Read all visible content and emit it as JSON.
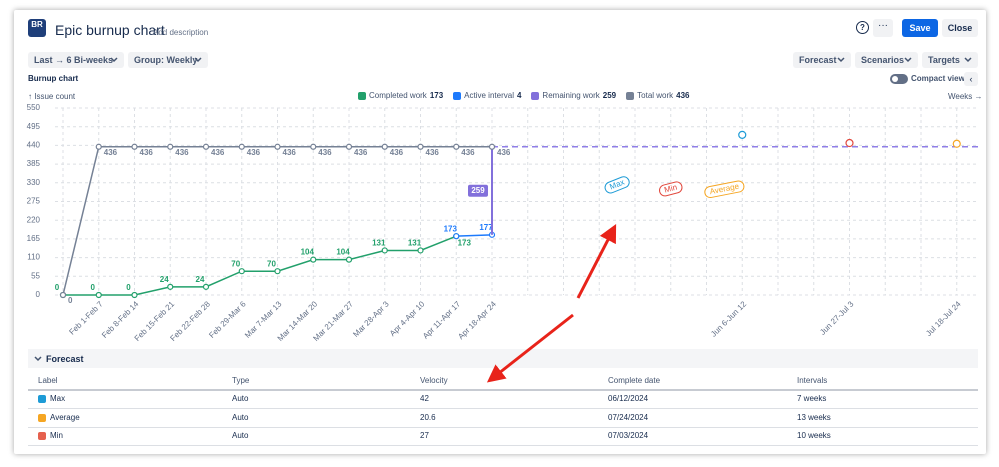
{
  "header": {
    "logo": "BR",
    "title": "Epic burnup chart",
    "description": "Add description",
    "buttons": [
      "Save",
      "Close"
    ]
  },
  "toolbar": {
    "left": [
      "Last → 6 Bi-weeks",
      "Group: Weekly"
    ],
    "right": [
      "Forecast",
      "Scenarios",
      "Targets"
    ],
    "toggle": "Compact view"
  },
  "chart_data": {
    "type": "line",
    "title": "Burnup chart",
    "y_label": "↑ Issue count",
    "x_label": "Weeks →",
    "x": [
      null,
      "Feb 1-Feb 7",
      "Feb 8-Feb 14",
      "Feb 15-Feb 21",
      "Feb 22-Feb 28",
      "Feb 29-Mar 6",
      "Mar 7-Mar 13",
      "Mar 14-Mar 20",
      "Mar 21-Mar 27",
      "Mar 28-Apr 3",
      "Apr 4-Apr 10",
      "Apr 11-Apr 17",
      "Apr 18-Apr 24",
      null,
      null,
      null,
      null,
      null,
      null,
      "Jun 6-Jun 12",
      null,
      null,
      "Jun 27-Jul 3",
      null,
      null,
      "Jul 18-Jul 24"
    ],
    "ylim": [
      0,
      550
    ],
    "yticks": [
      0,
      55,
      110,
      165,
      220,
      275,
      330,
      385,
      440,
      495,
      550
    ],
    "grid": true,
    "series": [
      {
        "name": "Completed work",
        "total": 173,
        "color": "#22a06b",
        "mark": "line",
        "values": [
          0,
          0,
          0,
          24,
          24,
          70,
          70,
          104,
          104,
          131,
          131,
          173,
          null,
          null,
          null,
          null,
          null,
          null,
          null,
          null,
          null,
          null,
          null,
          null,
          null,
          null
        ]
      },
      {
        "name": "Active interval",
        "total": 4,
        "color": "#1d7afc",
        "mark": "line",
        "values": [
          null,
          null,
          null,
          null,
          null,
          null,
          null,
          null,
          null,
          null,
          null,
          173,
          177,
          null,
          null,
          null,
          null,
          null,
          null,
          null,
          null,
          null,
          null,
          null,
          null,
          null
        ]
      },
      {
        "name": "Remaining work",
        "total": 259,
        "color": "#8270db",
        "mark": "bar",
        "values": [
          null,
          null,
          null,
          null,
          null,
          null,
          null,
          null,
          null,
          null,
          null,
          null,
          259,
          null,
          null,
          null,
          null,
          null,
          null,
          null,
          null,
          null,
          null,
          null,
          null,
          null
        ]
      },
      {
        "name": "Total work",
        "total": 436,
        "color": "#758195",
        "mark": "line",
        "projection_color": "#8f7ee7",
        "values": [
          0,
          436,
          436,
          436,
          436,
          436,
          436,
          436,
          436,
          436,
          436,
          436,
          436,
          null,
          null,
          null,
          null,
          null,
          null,
          null,
          null,
          null,
          null,
          null,
          null,
          null
        ]
      },
      {
        "name": "Max",
        "color": "#1d9bd6",
        "mark": "forecast",
        "values": [
          null,
          null,
          null,
          null,
          null,
          null,
          null,
          null,
          null,
          null,
          null,
          null,
          177,
          null,
          null,
          null,
          null,
          null,
          null,
          471,
          null,
          null,
          null,
          null,
          null,
          null
        ]
      },
      {
        "name": "Min",
        "color": "#e2483d",
        "mark": "forecast",
        "values": [
          null,
          null,
          null,
          null,
          null,
          null,
          null,
          null,
          null,
          null,
          null,
          null,
          177,
          null,
          null,
          null,
          null,
          null,
          null,
          null,
          null,
          null,
          447,
          null,
          null,
          null
        ]
      },
      {
        "name": "Average",
        "color": "#f5a623",
        "mark": "forecast",
        "values": [
          null,
          null,
          null,
          null,
          null,
          null,
          null,
          null,
          null,
          null,
          null,
          null,
          177,
          null,
          null,
          null,
          null,
          null,
          null,
          null,
          null,
          null,
          null,
          null,
          null,
          444.8
        ]
      }
    ]
  },
  "forecast": {
    "title": "Forecast",
    "columns": [
      "Label",
      "Type",
      "Velocity",
      "Complete date",
      "Intervals"
    ],
    "rows": [
      [
        "Max",
        "Auto",
        42,
        "06/12/2024",
        "7 weeks"
      ],
      [
        "Average",
        "Auto",
        20.6,
        "07/24/2024",
        "13 weeks"
      ],
      [
        "Min",
        "Auto",
        27,
        "07/03/2024",
        "10 weeks"
      ]
    ],
    "row_colors": [
      "#1d9bd6",
      "#f5a623",
      "#e5604e"
    ]
  }
}
